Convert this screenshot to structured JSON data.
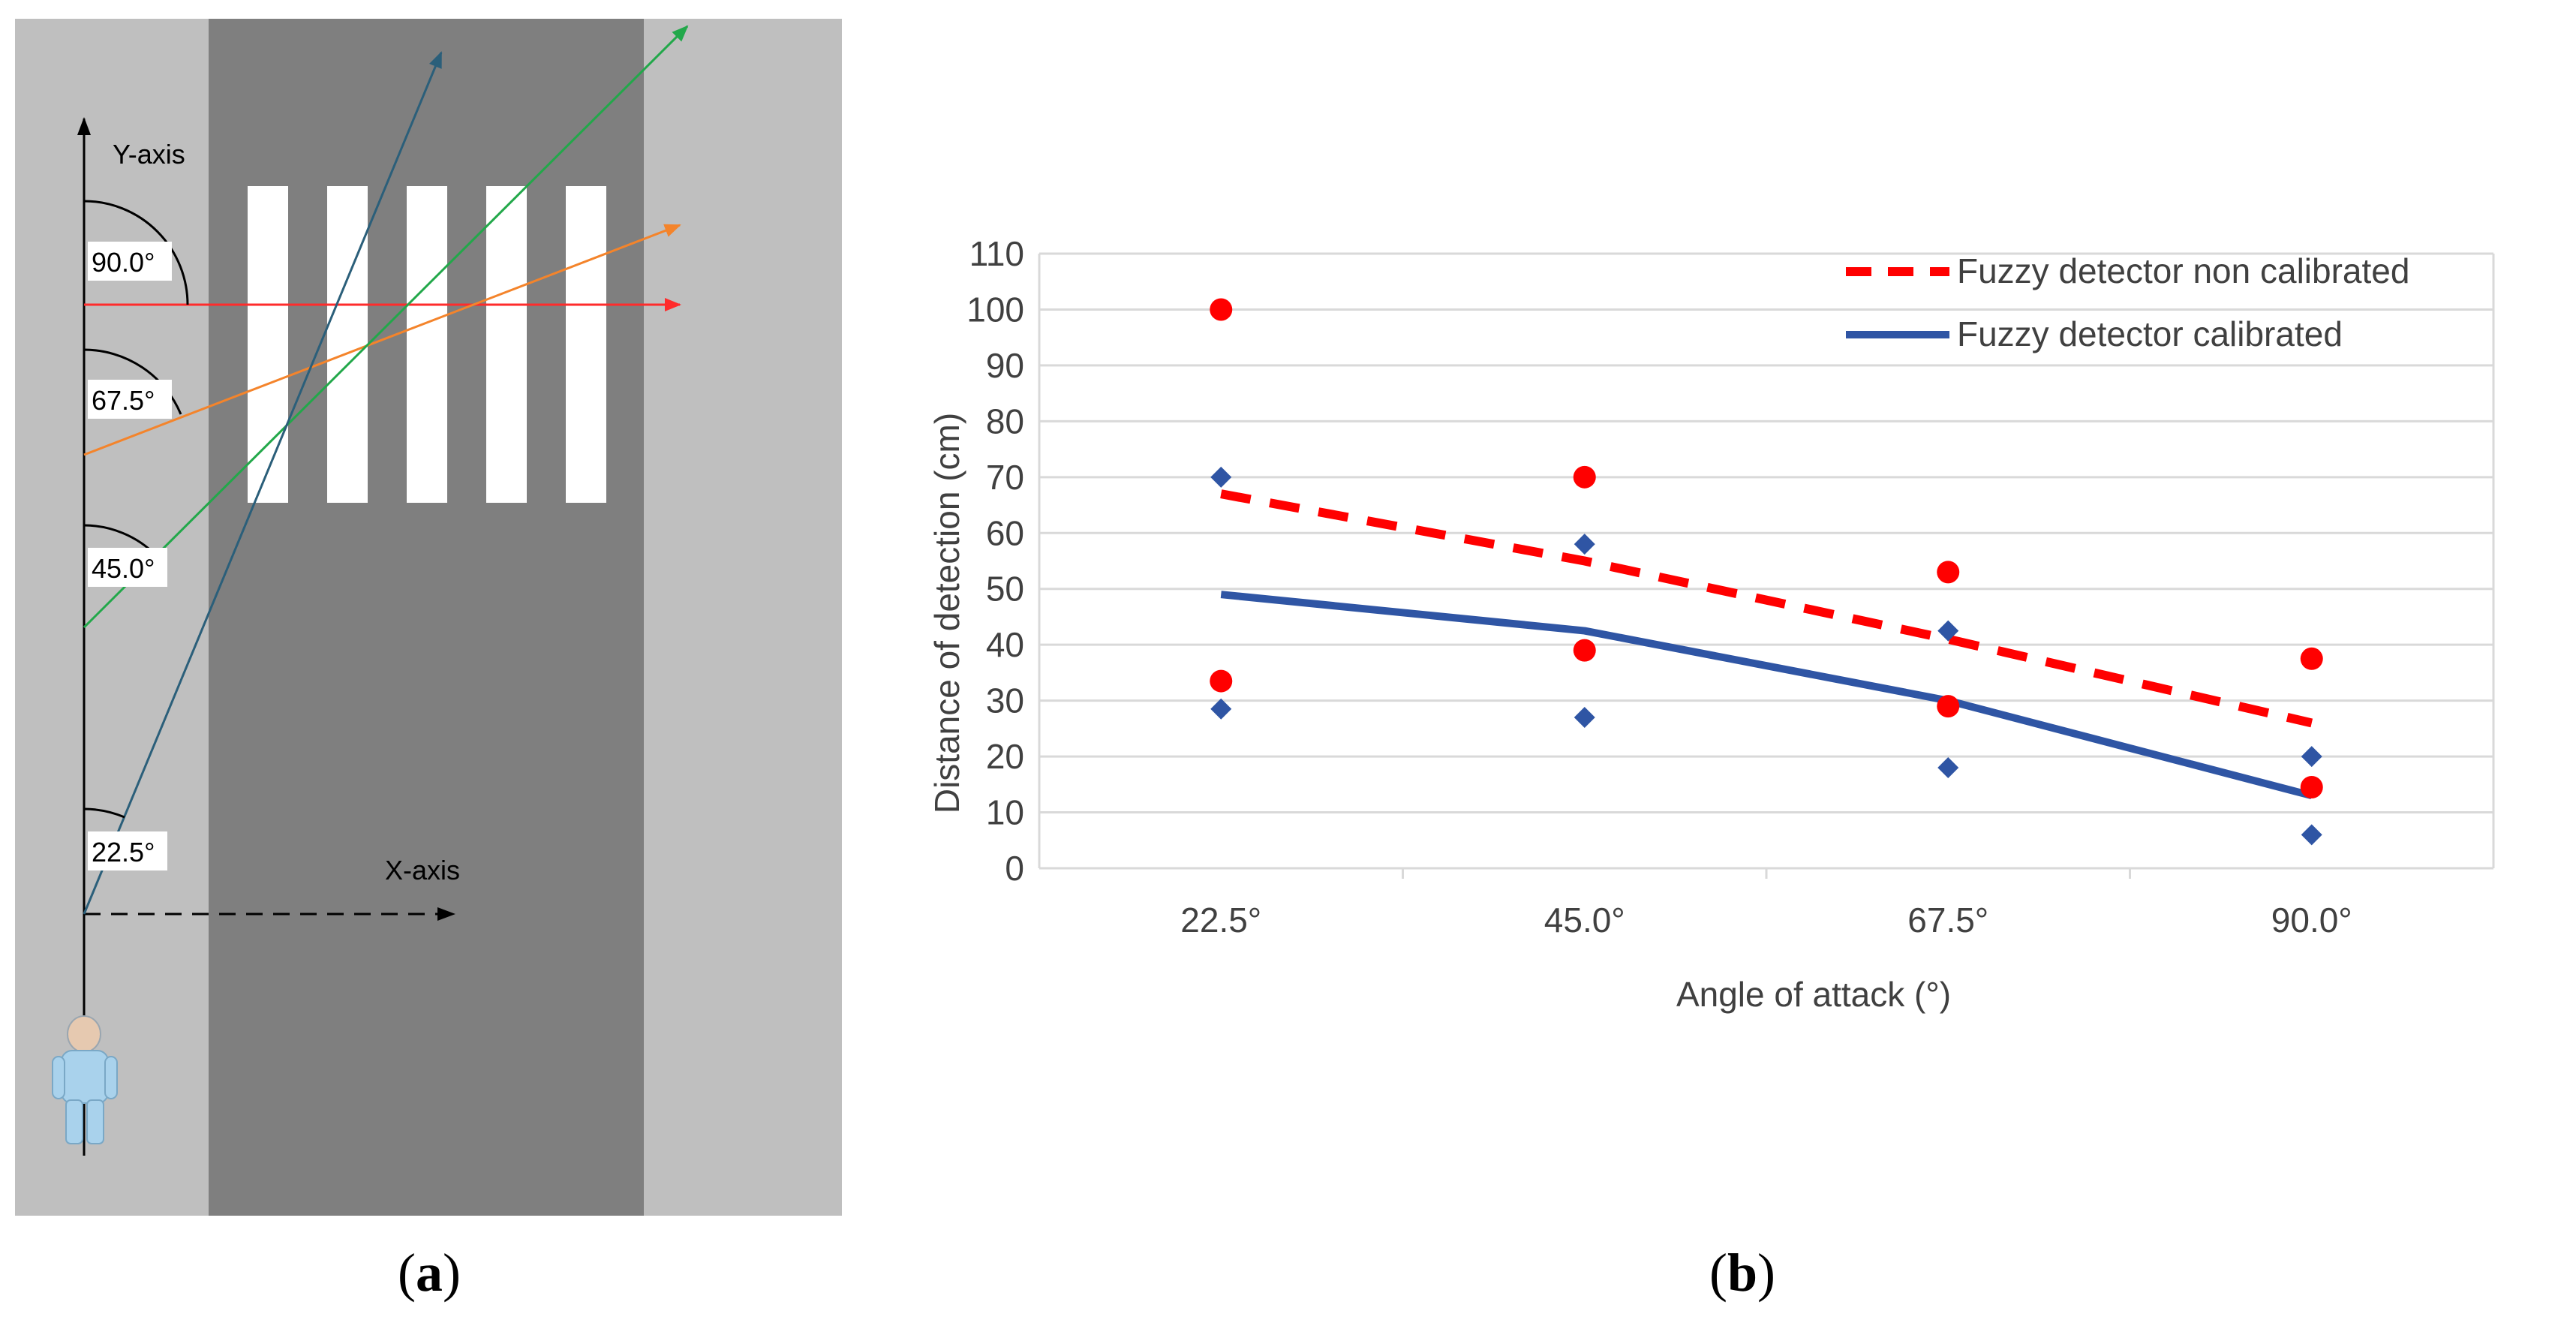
{
  "panel_a": {
    "y_axis_label": "Y-axis",
    "x_axis_label": "X-axis",
    "angle_labels": [
      "90.0°",
      "67.5°",
      "45.0°",
      "22.5°"
    ],
    "colors": {
      "road": "#7f7f7f",
      "sidewalk": "#bfbfbf",
      "stripe": "#ffffff",
      "line_90": "#ff2b2b",
      "line_67_5": "#f4842b",
      "line_45": "#22a84a",
      "line_22_5": "#2b5f7a"
    },
    "caption_letter": "a"
  },
  "chart_data": {
    "type": "line",
    "title": "",
    "xlabel": "Angle of attack (°)",
    "ylabel": "Distance of detection (cm)",
    "categories": [
      "22.5°",
      "45.0°",
      "67.5°",
      "90.0°"
    ],
    "ylim": [
      0,
      110
    ],
    "yticks": [
      0,
      10,
      20,
      30,
      40,
      50,
      60,
      70,
      80,
      90,
      100,
      110
    ],
    "grid": true,
    "legend_position": "top-right",
    "series": [
      {
        "name": "Fuzzy detector non calibrated",
        "style": "dashed",
        "color": "#ff0000",
        "values": [
          67,
          55,
          41,
          26
        ],
        "range_markers": {
          "shape": "circle",
          "max": [
            100,
            70,
            53,
            37.5
          ],
          "min": [
            33.5,
            39,
            29,
            14.5
          ]
        }
      },
      {
        "name": "Fuzzy detector calibrated",
        "style": "solid",
        "color": "#2f55a4",
        "values": [
          49,
          42.5,
          30,
          13
        ],
        "range_markers": {
          "shape": "diamond",
          "max": [
            70,
            58,
            42.5,
            20
          ],
          "min": [
            28.5,
            27,
            18,
            6
          ]
        }
      }
    ],
    "caption_letter": "b"
  }
}
